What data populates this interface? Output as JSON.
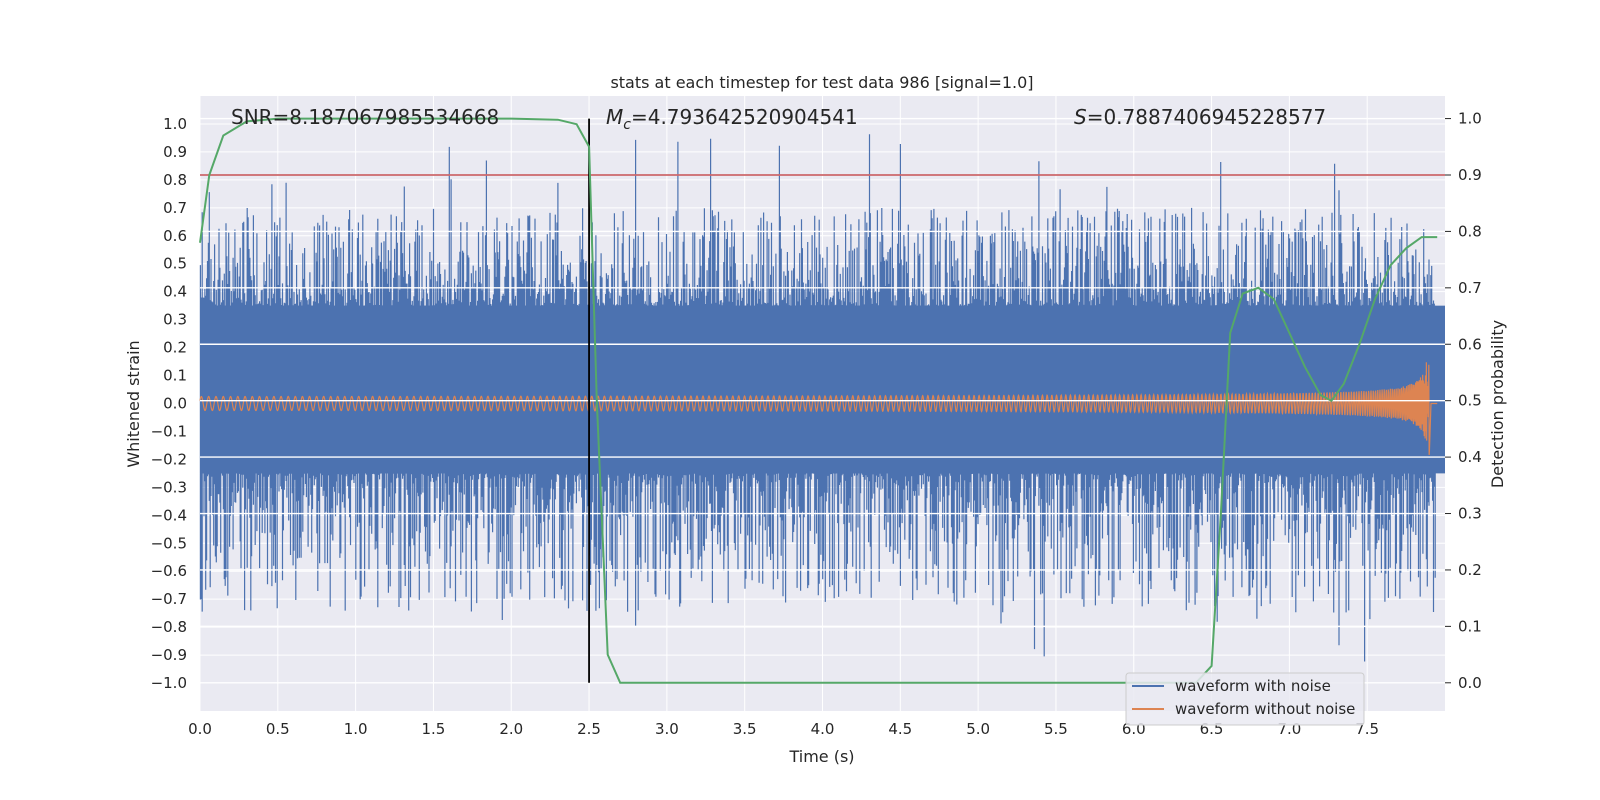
{
  "chart_data": {
    "type": "line",
    "title": "stats at each timestep for test data 986 [signal=1.0]",
    "xlabel": "Time (s)",
    "ylabel_left": "Whitened strain",
    "ylabel_right": "Detection probability",
    "xlim": [
      0.0,
      8.0
    ],
    "ylim_left": [
      -1.1,
      1.1
    ],
    "ylim_right": [
      -0.05,
      1.04
    ],
    "x_ticks": [
      "0.0",
      "0.5",
      "1.0",
      "1.5",
      "2.0",
      "2.5",
      "3.0",
      "3.5",
      "4.0",
      "4.5",
      "5.0",
      "5.5",
      "6.0",
      "6.5",
      "7.0",
      "7.5"
    ],
    "y_left_ticks": [
      "1.0",
      "0.9",
      "0.8",
      "0.7",
      "0.6",
      "0.5",
      "0.4",
      "0.3",
      "0.2",
      "0.1",
      "0.0",
      "-0.1",
      "-0.2",
      "-0.3",
      "-0.4",
      "-0.5",
      "-0.6",
      "-0.7",
      "-0.8",
      "-0.9",
      "-1.0"
    ],
    "y_right_ticks": [
      "1.0",
      "0.9",
      "0.8",
      "0.7",
      "0.6",
      "0.5",
      "0.4",
      "0.3",
      "0.2",
      "0.1",
      "0.0"
    ],
    "grid": true,
    "annotations": {
      "snr": "SNR=8.187067985534668",
      "mc_symbol": "M",
      "mc_subscript": "c",
      "mc_value": "=4.793642520904541",
      "s_symbol": "S",
      "s_value": "=0.7887406945228577"
    },
    "vertical_line_x": 2.5,
    "threshold_probability": 0.9,
    "series": [
      {
        "name": "waveform with noise",
        "color": "#4c72b0",
        "kind": "noise",
        "dense_band": [
          -0.25,
          0.35
        ],
        "typical_peak": 0.55,
        "max_abs": 0.97
      },
      {
        "name": "waveform without noise",
        "color": "#dd8452",
        "kind": "chirp",
        "start_amplitude": 0.02,
        "end_amplitude": 0.2,
        "merger_time": 7.9
      },
      {
        "name": "detection probability",
        "color": "#55a868",
        "axis": "right",
        "x": [
          0.0,
          0.06,
          0.15,
          0.3,
          0.5,
          1.0,
          1.5,
          2.0,
          2.3,
          2.42,
          2.5,
          2.55,
          2.62,
          2.7,
          2.8,
          3.0,
          4.0,
          5.0,
          6.0,
          6.4,
          6.5,
          6.56,
          6.62,
          6.7,
          6.8,
          6.9,
          7.0,
          7.1,
          7.2,
          7.27,
          7.35,
          7.45,
          7.55,
          7.65,
          7.75,
          7.85,
          7.95
        ],
        "y": [
          0.78,
          0.9,
          0.97,
          0.995,
          1.0,
          1.0,
          1.0,
          1.0,
          0.998,
          0.99,
          0.95,
          0.5,
          0.05,
          0.0,
          0.0,
          0.0,
          0.0,
          0.0,
          0.0,
          0.0,
          0.03,
          0.3,
          0.62,
          0.69,
          0.7,
          0.68,
          0.62,
          0.56,
          0.51,
          0.5,
          0.53,
          0.6,
          0.68,
          0.74,
          0.77,
          0.79,
          0.79
        ]
      }
    ],
    "legend": {
      "placement": "lower-right",
      "entries": [
        {
          "label": "waveform with noise",
          "color": "#4c72b0"
        },
        {
          "label": "waveform without noise",
          "color": "#dd8452"
        }
      ]
    },
    "colors": {
      "background": "#eaeaf2",
      "grid": "#ffffff",
      "threshold": "#c44e52",
      "vline": "#000000"
    }
  }
}
